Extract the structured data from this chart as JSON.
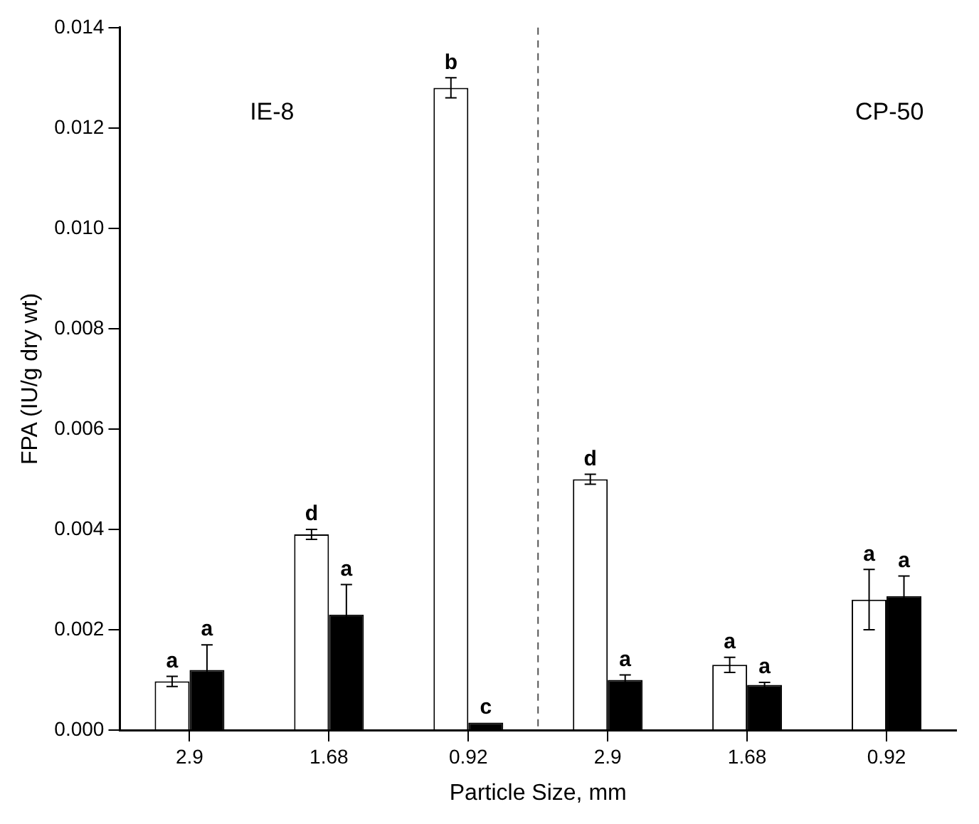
{
  "chart_data": {
    "type": "bar",
    "xlabel": "Particle Size, mm",
    "ylabel": "FPA (IU/g dry wt)",
    "categories": [
      "2.9",
      "1.68",
      "0.92",
      "2.9",
      "1.68",
      "0.92"
    ],
    "series": [
      {
        "color": "#ffffff",
        "values": [
          0.00097,
          0.0039,
          0.0128,
          0.005,
          0.0013,
          0.0026
        ],
        "errors": [
          0.0001,
          0.0001,
          0.0002,
          0.0001,
          0.00015,
          0.0006
        ],
        "value_labels": [
          "a",
          "d",
          "b",
          "d",
          "a",
          "a"
        ]
      },
      {
        "color": "#000000",
        "values": [
          0.0012,
          0.0023,
          0.00015,
          0.001,
          0.0009,
          0.00267
        ],
        "errors": [
          0.0005,
          0.0006,
          null,
          0.0001,
          5e-05,
          0.0004
        ],
        "value_labels": [
          "a",
          "a",
          "c",
          "a",
          "a",
          "a"
        ]
      }
    ],
    "ylim": [
      0,
      0.014
    ],
    "yticks": [
      {
        "value": 0,
        "label": "0.000"
      },
      {
        "value": 0.002,
        "label": "0.002"
      },
      {
        "value": 0.004,
        "label": "0.004"
      },
      {
        "value": 0.006,
        "label": "0.006"
      },
      {
        "value": 0.008,
        "label": "0.008"
      },
      {
        "value": 0.01,
        "label": "0.010"
      },
      {
        "value": 0.012,
        "label": "0.012"
      },
      {
        "value": 0.014,
        "label": "0.014"
      }
    ],
    "annotations": [
      "IE-8",
      "CP-50"
    ],
    "grid": false,
    "legend": false
  }
}
